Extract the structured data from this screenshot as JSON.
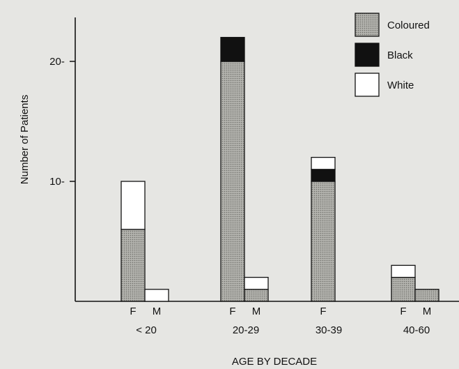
{
  "chart_data": {
    "type": "bar",
    "stacked": true,
    "title": "",
    "ylabel": "Number of Patients",
    "xlabel": "AGE BY DECADE",
    "ylim": [
      0,
      24
    ],
    "yticks": [
      10,
      20
    ],
    "ytick_labels": [
      "10-",
      "20-"
    ],
    "legend_position": "top-right",
    "series": [
      {
        "name": "Coloured",
        "color": "#a9a9a4",
        "pattern": "dotted"
      },
      {
        "name": "Black",
        "color": "#111111"
      },
      {
        "name": "White",
        "color": "#ffffff"
      }
    ],
    "groups": [
      {
        "label": "< 20",
        "bars": [
          {
            "sex": "F",
            "coloured": 6,
            "black": 0,
            "white": 4
          },
          {
            "sex": "M",
            "coloured": 0,
            "black": 0,
            "white": 1
          }
        ]
      },
      {
        "label": "20-29",
        "bars": [
          {
            "sex": "F",
            "coloured": 20,
            "black": 2,
            "white": 0
          },
          {
            "sex": "M",
            "coloured": 1,
            "black": 0,
            "white": 1
          }
        ]
      },
      {
        "label": "30-39",
        "bars": [
          {
            "sex": "F",
            "coloured": 10,
            "black": 1,
            "white": 1
          }
        ]
      },
      {
        "label": "40-60",
        "bars": [
          {
            "sex": "F",
            "coloured": 2,
            "black": 0,
            "white": 1
          },
          {
            "sex": "M",
            "coloured": 1,
            "black": 0,
            "white": 0
          }
        ]
      }
    ]
  }
}
